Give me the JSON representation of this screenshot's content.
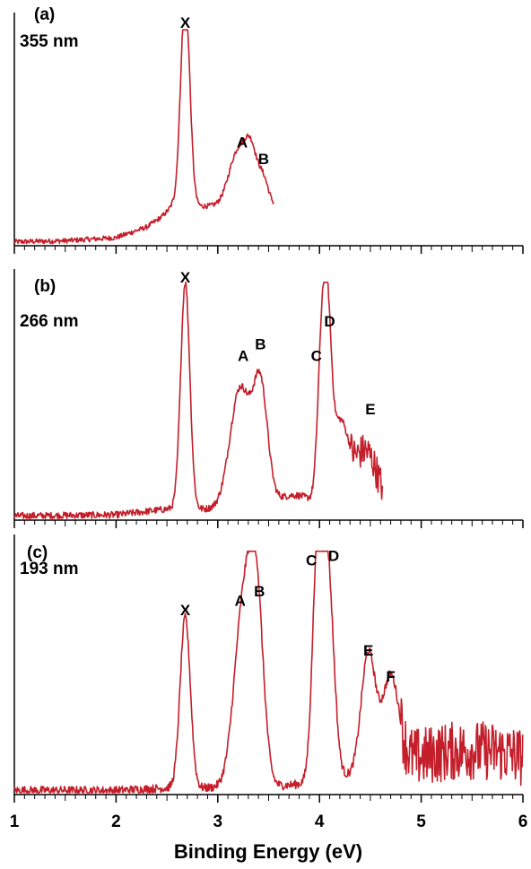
{
  "chart_data": [
    {
      "type": "line",
      "panel_label": "(a)",
      "wavelength": "355 nm",
      "xlim": [
        1,
        3.55
      ],
      "ylim": [
        0,
        1
      ],
      "color": "#c41e2a",
      "noise": 0.012,
      "baseline": [
        [
          1.0,
          0.01
        ],
        [
          1.5,
          0.015
        ],
        [
          2.0,
          0.03
        ],
        [
          2.3,
          0.08
        ],
        [
          2.45,
          0.13
        ],
        [
          2.55,
          0.18
        ]
      ],
      "peaks": [
        {
          "x": 2.68,
          "y": 1.0,
          "w": 0.045
        },
        {
          "x": 3.2,
          "y": 0.26,
          "w": 0.09
        },
        {
          "x": 3.33,
          "y": 0.22,
          "w": 0.06
        },
        {
          "x": 3.45,
          "y": 0.12,
          "w": 0.05
        }
      ],
      "peak_labels": [
        {
          "text": "X",
          "x": 2.68,
          "y": 1.03
        },
        {
          "text": "A",
          "x": 3.24,
          "y": 0.46
        },
        {
          "text": "B",
          "x": 3.45,
          "y": 0.38
        }
      ]
    },
    {
      "type": "line",
      "panel_label": "(b)",
      "wavelength": "266 nm",
      "xlim": [
        1,
        4.62
      ],
      "ylim": [
        0,
        1
      ],
      "color": "#c41e2a",
      "noise": 0.015,
      "baseline": [
        [
          1.0,
          0.01
        ],
        [
          2.0,
          0.015
        ],
        [
          2.5,
          0.04
        ]
      ],
      "peaks": [
        {
          "x": 2.68,
          "y": 0.98,
          "w": 0.045
        },
        {
          "x": 3.22,
          "y": 0.52,
          "w": 0.1
        },
        {
          "x": 3.42,
          "y": 0.5,
          "w": 0.07
        },
        {
          "x": 3.75,
          "y": 0.06,
          "w": 0.2
        },
        {
          "x": 4.02,
          "y": 0.6,
          "w": 0.04
        },
        {
          "x": 4.08,
          "y": 0.66,
          "w": 0.04
        },
        {
          "x": 4.2,
          "y": 0.35,
          "w": 0.08
        },
        {
          "x": 4.45,
          "y": 0.25,
          "w": 0.12
        }
      ],
      "peak_labels": [
        {
          "text": "X",
          "x": 2.68,
          "y": 1.02
        },
        {
          "text": "A",
          "x": 3.25,
          "y": 0.68
        },
        {
          "text": "B",
          "x": 3.42,
          "y": 0.73
        },
        {
          "text": "C",
          "x": 3.97,
          "y": 0.68
        },
        {
          "text": "D",
          "x": 4.1,
          "y": 0.83
        },
        {
          "text": "E",
          "x": 4.5,
          "y": 0.45
        }
      ]
    },
    {
      "type": "line",
      "panel_label": "(c)",
      "wavelength": "193 nm",
      "xlim": [
        1,
        6
      ],
      "ylim": [
        0,
        1
      ],
      "color": "#c41e2a",
      "noise": 0.018,
      "baseline": [
        [
          1.0,
          0.01
        ],
        [
          2.0,
          0.01
        ],
        [
          2.5,
          0.02
        ]
      ],
      "peaks": [
        {
          "x": 2.68,
          "y": 0.72,
          "w": 0.05
        },
        {
          "x": 3.25,
          "y": 0.74,
          "w": 0.09
        },
        {
          "x": 3.38,
          "y": 0.72,
          "w": 0.07
        },
        {
          "x": 3.98,
          "y": 0.9,
          "w": 0.05
        },
        {
          "x": 4.08,
          "y": 0.88,
          "w": 0.06
        },
        {
          "x": 4.48,
          "y": 0.5,
          "w": 0.07
        },
        {
          "x": 4.7,
          "y": 0.38,
          "w": 0.08
        },
        {
          "x": 5.5,
          "y": 0.16,
          "w": 0.8
        }
      ],
      "peak_labels": [
        {
          "text": "X",
          "x": 2.68,
          "y": 0.75
        },
        {
          "text": "A",
          "x": 3.22,
          "y": 0.79
        },
        {
          "text": "B",
          "x": 3.41,
          "y": 0.83
        },
        {
          "text": "C",
          "x": 3.92,
          "y": 0.96
        },
        {
          "text": "D",
          "x": 4.14,
          "y": 0.98
        },
        {
          "text": "E",
          "x": 4.48,
          "y": 0.58
        },
        {
          "text": "F",
          "x": 4.7,
          "y": 0.47
        }
      ]
    }
  ],
  "axis": {
    "xlabel": "Binding Energy (eV)",
    "xlim": [
      1,
      6
    ],
    "major_ticks": [
      1,
      2,
      3,
      4,
      5,
      6
    ],
    "minor_step": 0.1
  }
}
